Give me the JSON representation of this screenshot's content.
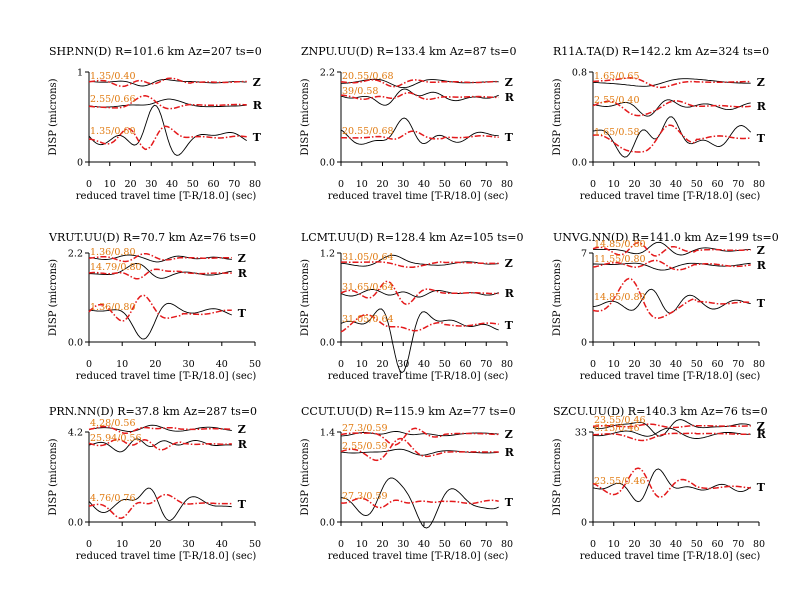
{
  "chart_data": [
    {
      "type": "line",
      "title": "SHP.NN(D) R=101.6 km Az=207 ts=0",
      "xlabel": "reduced travel time [T-R/18.0] (sec)",
      "ylabel": "DISP (microns)",
      "xlim": [
        0,
        80
      ],
      "xticks": [
        "0",
        "10",
        "20",
        "30",
        "40",
        "50",
        "60",
        "70",
        "80"
      ],
      "ylim_labels": [
        "0",
        "1"
      ],
      "components": [
        {
          "name": "Z",
          "annotation": "1.35/0.40",
          "trace_end": 76
        },
        {
          "name": "R",
          "annotation": "2.55/0.66",
          "trace_end": 76
        },
        {
          "name": "T",
          "annotation": "1.35/0.60",
          "trace_end": 76
        }
      ]
    },
    {
      "type": "line",
      "title": "ZNPU.UU(D) R=133.4 km Az=87 ts=0",
      "xlabel": "reduced travel time [T-R/18.0] (sec)",
      "ylabel": "DISP (microns)",
      "xlim": [
        0,
        80
      ],
      "xticks": [
        "0",
        "10",
        "20",
        "30",
        "40",
        "50",
        "60",
        "70",
        "80"
      ],
      "ylim_labels": [
        "0.0",
        "2.2"
      ],
      "components": [
        {
          "name": "Z",
          "annotation": "20.55/0.68",
          "trace_end": 76
        },
        {
          "name": "R",
          "annotation": "39/0.58",
          "trace_end": 76
        },
        {
          "name": "T",
          "annotation": "20.55/0.68",
          "trace_end": 76
        }
      ]
    },
    {
      "type": "line",
      "title": "R11A.TA(D) R=142.2 km Az=324 ts=0",
      "xlabel": "reduced travel time [T-R/18.0] (sec)",
      "ylabel": "DISP (microns)",
      "xlim": [
        0,
        80
      ],
      "xticks": [
        "0",
        "10",
        "20",
        "30",
        "40",
        "50",
        "60",
        "70",
        "80"
      ],
      "ylim_labels": [
        "0.0",
        "0.8"
      ],
      "components": [
        {
          "name": "Z",
          "annotation": "1.65/0.65",
          "trace_end": 76
        },
        {
          "name": "R",
          "annotation": "2.55/0.40",
          "trace_end": 76
        },
        {
          "name": "T",
          "annotation": "1.65/0.58",
          "trace_end": 76
        }
      ]
    },
    {
      "type": "line",
      "title": "VRUT.UU(D) R=70.7 km Az=76 ts=0",
      "xlabel": "reduced travel time [T-R/18.0] (sec)",
      "ylabel": "DISP (microns)",
      "xlim": [
        0,
        50
      ],
      "xticks": [
        "0",
        "10",
        "20",
        "30",
        "40",
        "50"
      ],
      "ylim_labels": [
        "0.0",
        "2.2"
      ],
      "components": [
        {
          "name": "Z",
          "annotation": "1.36/0.80",
          "trace_end": 43
        },
        {
          "name": "R",
          "annotation": "14.79/0.80",
          "trace_end": 43
        },
        {
          "name": "T",
          "annotation": "1.36/0.80",
          "trace_end": 43
        }
      ]
    },
    {
      "type": "line",
      "title": "LCMT.UU(D) R=128.4 km Az=105 ts=0",
      "xlabel": "reduced travel time [T-R/18.0] (sec)",
      "ylabel": "DISP (microns)",
      "xlim": [
        0,
        80
      ],
      "xticks": [
        "0",
        "10",
        "20",
        "30",
        "40",
        "50",
        "60",
        "70",
        "80"
      ],
      "ylim_labels": [
        "0.0",
        "1.2"
      ],
      "components": [
        {
          "name": "Z",
          "annotation": "31.05/0.64",
          "trace_end": 76
        },
        {
          "name": "R",
          "annotation": "31.65/0.64",
          "trace_end": 76
        },
        {
          "name": "T",
          "annotation": "31.05/0.64",
          "trace_end": 76
        }
      ]
    },
    {
      "type": "line",
      "title": "UNVG.NN(D) R=141.0 km Az=199 ts=0",
      "xlabel": "reduced travel time [T-R/18.0] (sec)",
      "ylabel": "DISP (microns)",
      "xlim": [
        0,
        80
      ],
      "xticks": [
        "0",
        "10",
        "20",
        "30",
        "40",
        "50",
        "60",
        "70",
        "80"
      ],
      "ylim_labels": [
        "0",
        "7"
      ],
      "components": [
        {
          "name": "Z",
          "annotation": "14.85/0.80",
          "trace_end": 76
        },
        {
          "name": "R",
          "annotation": "11.55/0.80",
          "trace_end": 76
        },
        {
          "name": "T",
          "annotation": "14.85/0.80",
          "trace_end": 76
        }
      ]
    },
    {
      "type": "line",
      "title": "PRN.NN(D) R=37.8 km Az=287 ts=0",
      "xlabel": "reduced travel time [T-R/18.0] (sec)",
      "ylabel": "DISP (microns)",
      "xlim": [
        0,
        50
      ],
      "xticks": [
        "0",
        "10",
        "20",
        "30",
        "40",
        "50"
      ],
      "ylim_labels": [
        "0.0",
        "4.2"
      ],
      "components": [
        {
          "name": "Z",
          "annotation": "4.28/0.56",
          "trace_end": 43
        },
        {
          "name": "R",
          "annotation": "25.94/0.56",
          "trace_end": 43
        },
        {
          "name": "T",
          "annotation": "4.76/0.76",
          "trace_end": 43
        }
      ]
    },
    {
      "type": "line",
      "title": "CCUT.UU(D) R=115.9 km Az=77 ts=0",
      "xlabel": "reduced travel time [T-R/18.0] (sec)",
      "ylabel": "DISP (microns)",
      "xlim": [
        0,
        80
      ],
      "xticks": [
        "0",
        "10",
        "20",
        "30",
        "40",
        "50",
        "60",
        "70",
        "80"
      ],
      "ylim_labels": [
        "0.0",
        "1.4"
      ],
      "components": [
        {
          "name": "Z",
          "annotation": "27.3/0.59",
          "trace_end": 76
        },
        {
          "name": "R",
          "annotation": "2.55/0.59",
          "trace_end": 76
        },
        {
          "name": "T",
          "annotation": "27.3/0.59",
          "trace_end": 76
        }
      ]
    },
    {
      "type": "line",
      "title": "SZCU.UU(D) R=140.3 km Az=76 ts=0",
      "xlabel": "reduced travel time [T-R/18.0] (sec)",
      "ylabel": "DISP (microns)",
      "xlim": [
        0,
        80
      ],
      "xticks": [
        "0",
        "10",
        "20",
        "30",
        "40",
        "50",
        "60",
        "70",
        "80"
      ],
      "ylim_labels": [
        "0",
        "33"
      ],
      "components": [
        {
          "name": "Z",
          "annotation": "23.55/0.46",
          "trace_end": 76
        },
        {
          "name": "R",
          "annotation": "6.15/0.46",
          "trace_end": 76
        },
        {
          "name": "T",
          "annotation": "23.55/0.46",
          "trace_end": 76
        }
      ]
    }
  ],
  "colors": {
    "observed": "#000000",
    "synthetic": "#e41a1c",
    "annotation": "#e07a10"
  }
}
